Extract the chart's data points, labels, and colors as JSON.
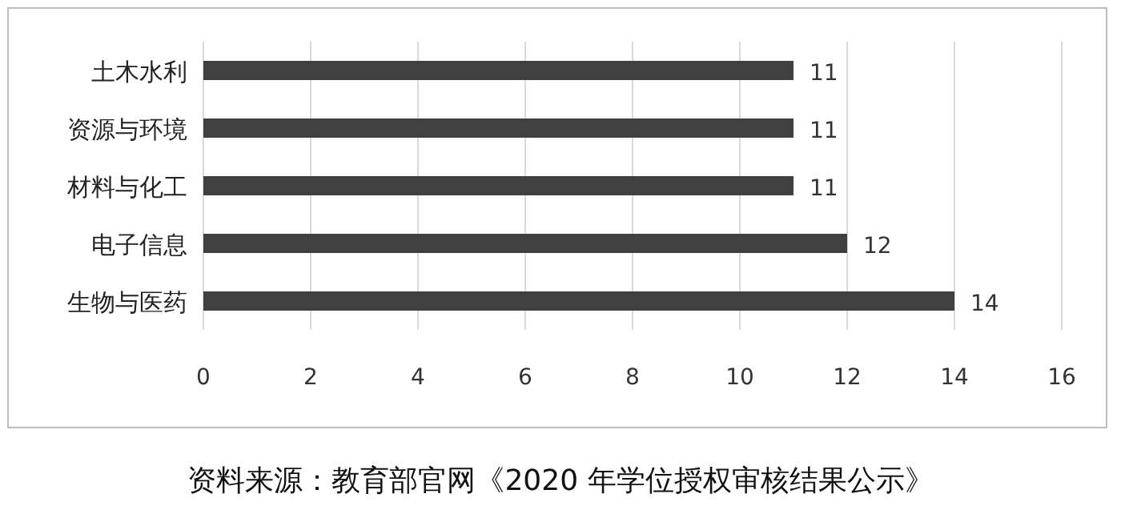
{
  "chart_data": {
    "type": "bar",
    "orientation": "horizontal",
    "categories": [
      "土木水利",
      "资源与环境",
      "材料与化工",
      "电子信息",
      "生物与医药"
    ],
    "values": [
      11,
      11,
      11,
      12,
      14
    ],
    "color": "#404040",
    "xlim": [
      0,
      16
    ],
    "xticks": [
      0,
      2,
      4,
      6,
      8,
      10,
      12,
      14,
      16
    ],
    "grid": "x",
    "data_labels": true,
    "annotations": [
      "资料来源：教育部官网《2020 年学位授权审核结果公示》"
    ]
  }
}
